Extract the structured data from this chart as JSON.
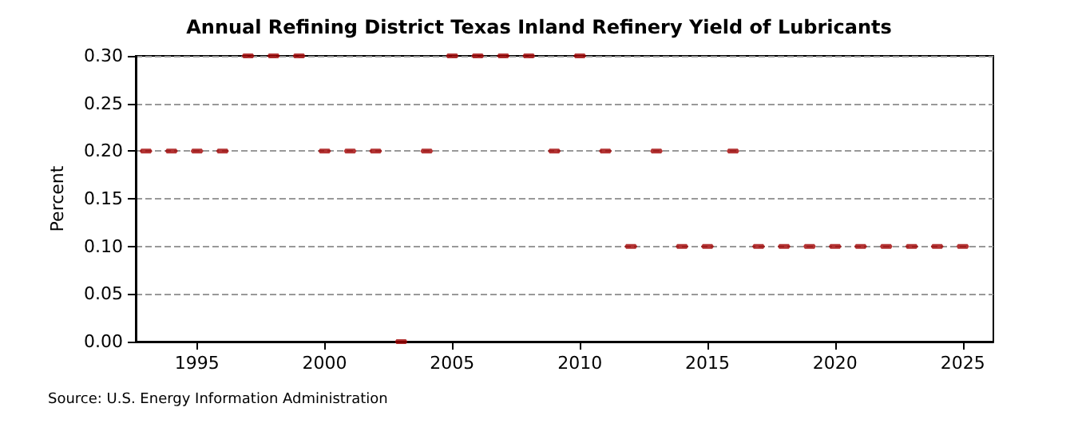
{
  "chart_data": {
    "type": "scatter",
    "title": "Annual Refining District Texas Inland Refinery Yield of Lubricants",
    "ylabel": "Percent",
    "x": [
      1993,
      1994,
      1995,
      1996,
      1997,
      1998,
      1999,
      2000,
      2001,
      2002,
      2003,
      2004,
      2005,
      2006,
      2007,
      2008,
      2009,
      2010,
      2011,
      2012,
      2013,
      2014,
      2015,
      2016,
      2017,
      2018,
      2019,
      2020,
      2021,
      2022,
      2023,
      2024,
      2025
    ],
    "values": [
      0.2,
      0.2,
      0.2,
      0.2,
      0.3,
      0.3,
      0.3,
      0.2,
      0.2,
      0.2,
      0.0,
      0.2,
      0.3,
      0.3,
      0.3,
      0.3,
      0.2,
      0.3,
      0.2,
      0.1,
      0.2,
      0.1,
      0.1,
      0.2,
      0.1,
      0.1,
      0.1,
      0.1,
      0.1,
      0.1,
      0.1,
      0.1,
      0.1
    ],
    "color": "#a00000",
    "xlim": [
      1992.6,
      2026.2
    ],
    "xticks": [
      1995,
      2000,
      2005,
      2010,
      2015,
      2020,
      2025
    ],
    "ylim": [
      0,
      0.3
    ],
    "yticks": [
      {
        "value": 0,
        "label": "0.00"
      },
      {
        "value": 0.05,
        "label": "0.05"
      },
      {
        "value": 0.1,
        "label": "0.10"
      },
      {
        "value": 0.15,
        "label": "0.15"
      },
      {
        "value": 0.2,
        "label": "0.20"
      },
      {
        "value": 0.25,
        "label": "0.25"
      },
      {
        "value": 0.3,
        "label": "0.30"
      }
    ],
    "grid": "y",
    "annotations": [
      "Source: U.S. Energy Information Administration"
    ]
  }
}
